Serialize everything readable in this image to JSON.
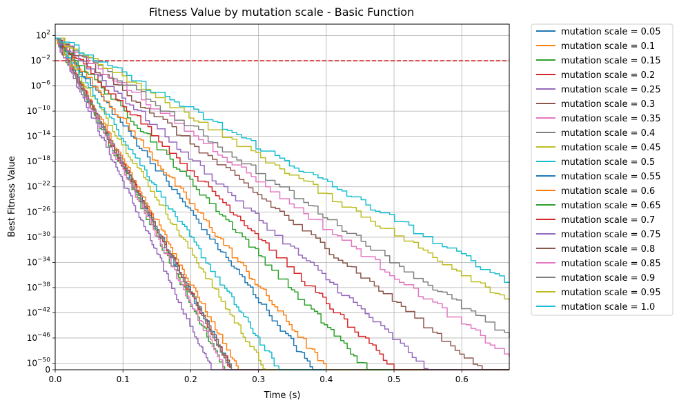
{
  "chart_data": {
    "type": "line",
    "title": "Fitness Value by mutation scale - Basic Function",
    "xlabel": "Time (s)",
    "ylabel": "Best Fitness Value",
    "xlim": [
      0,
      0.67
    ],
    "xticks": [
      {
        "value": 0.0,
        "label": "0.0"
      },
      {
        "value": 0.1,
        "label": "0.1"
      },
      {
        "value": 0.2,
        "label": "0.2"
      },
      {
        "value": 0.3,
        "label": "0.3"
      },
      {
        "value": 0.4,
        "label": "0.4"
      },
      {
        "value": 0.5,
        "label": "0.5"
      },
      {
        "value": 0.6,
        "label": "0.6"
      }
    ],
    "yscale": "symlog",
    "ylim": [
      0,
      1000
    ],
    "yticks": [
      {
        "value": 0,
        "mant": "0",
        "exp": ""
      },
      {
        "value": 1e-50,
        "mant": "10",
        "exp": "−50"
      },
      {
        "value": 1e-46,
        "mant": "10",
        "exp": "−46"
      },
      {
        "value": 1e-42,
        "mant": "10",
        "exp": "−42"
      },
      {
        "value": 1e-38,
        "mant": "10",
        "exp": "−38"
      },
      {
        "value": 1e-34,
        "mant": "10",
        "exp": "−34"
      },
      {
        "value": 1e-30,
        "mant": "10",
        "exp": "−30"
      },
      {
        "value": 1e-26,
        "mant": "10",
        "exp": "−26"
      },
      {
        "value": 1e-22,
        "mant": "10",
        "exp": "−22"
      },
      {
        "value": 1e-18,
        "mant": "10",
        "exp": "−18"
      },
      {
        "value": 1e-14,
        "mant": "10",
        "exp": "−14"
      },
      {
        "value": 1e-10,
        "mant": "10",
        "exp": "−10"
      },
      {
        "value": 1e-06,
        "mant": "10",
        "exp": "−6"
      },
      {
        "value": 0.01,
        "mant": "10",
        "exp": "−2"
      },
      {
        "value": 100,
        "mant": "10",
        "exp": "2"
      }
    ],
    "grid": true,
    "legend_position": "outside-right",
    "threshold": {
      "value": 0.01,
      "color": "#d62728",
      "style": "dashed"
    },
    "series": [
      {
        "name": "mutation scale = 0.05",
        "color": "#1f77b4",
        "end_time": 0.26
      },
      {
        "name": "mutation scale = 0.1",
        "color": "#ff7f0e",
        "end_time": 0.27
      },
      {
        "name": "mutation scale = 0.15",
        "color": "#2ca02c",
        "end_time": 0.25
      },
      {
        "name": "mutation scale = 0.2",
        "color": "#d62728",
        "end_time": 0.26
      },
      {
        "name": "mutation scale = 0.25",
        "color": "#9467bd",
        "end_time": 0.23
      },
      {
        "name": "mutation scale = 0.3",
        "color": "#8c564b",
        "end_time": 0.26
      },
      {
        "name": "mutation scale = 0.35",
        "color": "#e377c2",
        "end_time": 0.25
      },
      {
        "name": "mutation scale = 0.4",
        "color": "#7f7f7f",
        "end_time": 0.26
      },
      {
        "name": "mutation scale = 0.45",
        "color": "#bcbd22",
        "end_time": 0.31
      },
      {
        "name": "mutation scale = 0.5",
        "color": "#17becf",
        "end_time": 0.33
      },
      {
        "name": "mutation scale = 0.55",
        "color": "#1f77b4",
        "end_time": 0.38
      },
      {
        "name": "mutation scale = 0.6",
        "color": "#ff7f0e",
        "end_time": 0.4
      },
      {
        "name": "mutation scale = 0.65",
        "color": "#2ca02c",
        "end_time": 0.46
      },
      {
        "name": "mutation scale = 0.7",
        "color": "#d62728",
        "end_time": 0.5
      },
      {
        "name": "mutation scale = 0.75",
        "color": "#9467bd",
        "end_time": 0.55
      },
      {
        "name": "mutation scale = 0.8",
        "color": "#8c564b",
        "end_time": 0.63
      },
      {
        "name": "mutation scale = 0.85",
        "color": "#e377c2",
        "end_time": 0.67,
        "end_value": 1e-49
      },
      {
        "name": "mutation scale = 0.9",
        "color": "#7f7f7f",
        "end_time": 0.67,
        "end_value": 1e-46
      },
      {
        "name": "mutation scale = 0.95",
        "color": "#bcbd22",
        "end_time": 0.67,
        "end_value": 1e-40
      },
      {
        "name": "mutation scale = 1.0",
        "color": "#17becf",
        "end_time": 0.67,
        "end_value": 1e-37
      }
    ]
  }
}
